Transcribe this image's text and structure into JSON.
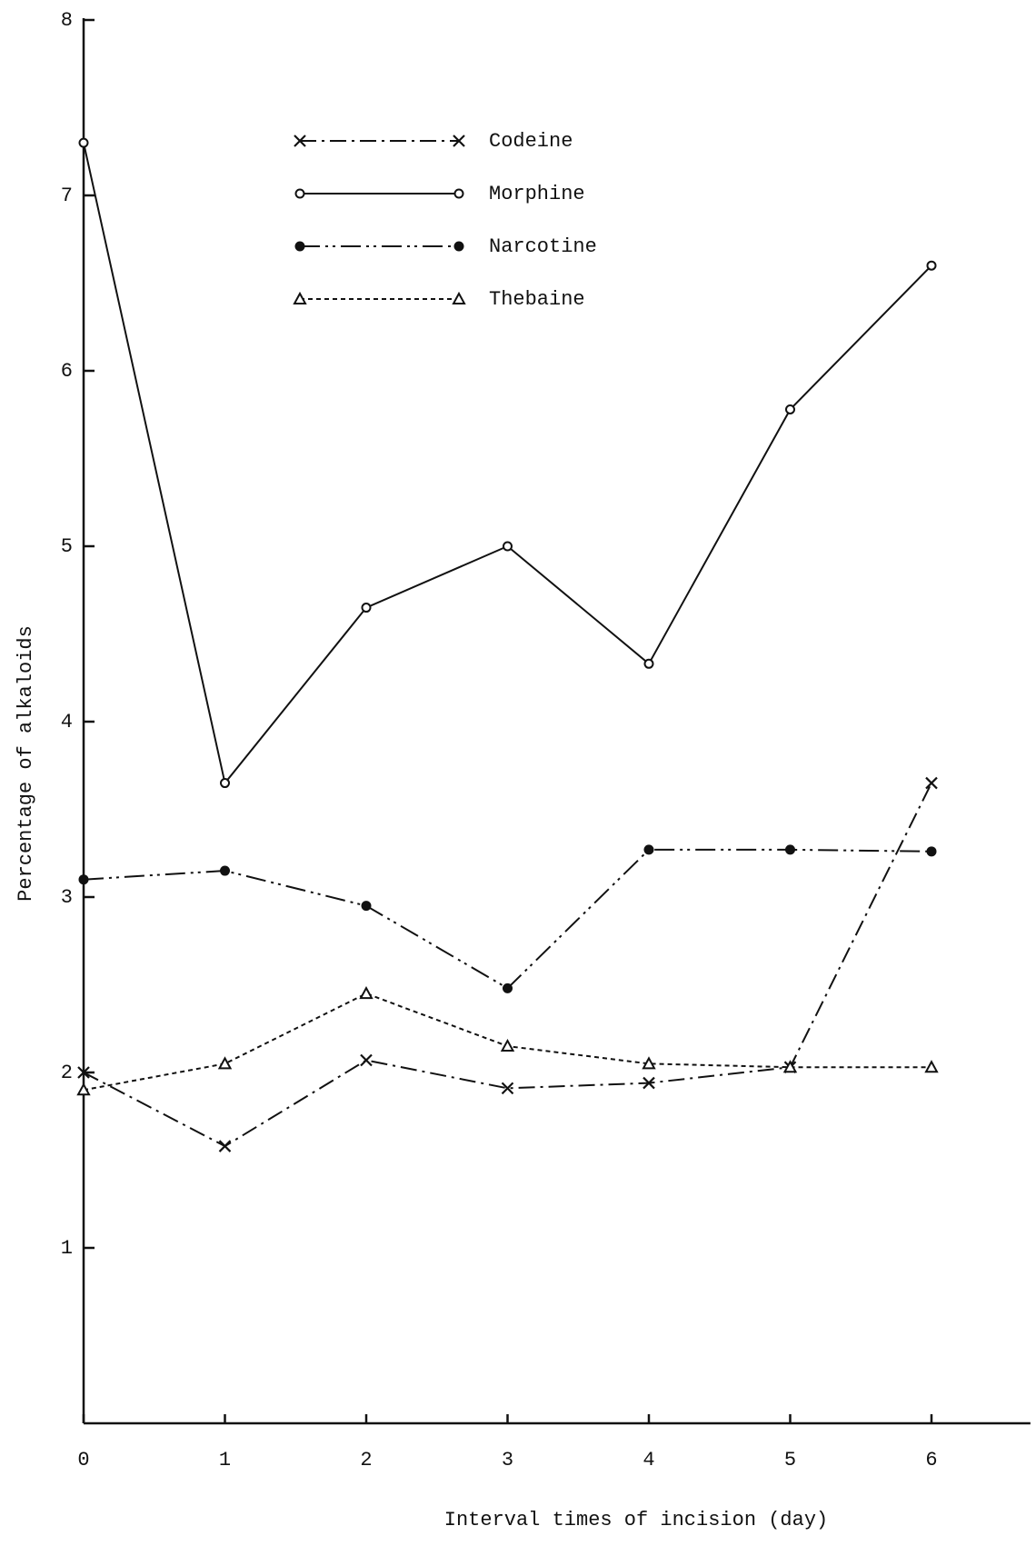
{
  "chart_data": {
    "type": "line",
    "x_label": "Interval times of incision  (day)",
    "y_label": "Percentage of alkaloids",
    "x": [
      0,
      1,
      2,
      3,
      4,
      5,
      6
    ],
    "series": [
      {
        "name": "Codeine",
        "color": "#111111",
        "marker": "x",
        "dash": "18 6 3 6",
        "values": [
          2.0,
          1.58,
          2.07,
          1.91,
          1.94,
          2.03,
          3.65
        ]
      },
      {
        "name": "Morphine",
        "color": "#111111",
        "marker": "circle",
        "dash": "none",
        "values": [
          7.3,
          3.65,
          4.65,
          5.0,
          4.33,
          5.78,
          6.6
        ]
      },
      {
        "name": "Narcotine",
        "color": "#111111",
        "marker": "dot",
        "dash": "22 6 3 5 3 6",
        "values": [
          3.1,
          3.15,
          2.95,
          2.48,
          3.27,
          3.27,
          3.26
        ]
      },
      {
        "name": "Thebaine",
        "color": "#111111",
        "marker": "triangle",
        "dash": "5 4",
        "values": [
          1.9,
          2.05,
          2.45,
          2.15,
          2.05,
          2.03,
          2.03
        ]
      }
    ],
    "xlim": [
      0,
      6.7
    ],
    "xticks": [
      0,
      1,
      2,
      3,
      4,
      5,
      6
    ],
    "ylim": [
      0,
      8
    ],
    "yticks": [
      1,
      2,
      3,
      4,
      5,
      6,
      7,
      8
    ],
    "grid": false
  }
}
